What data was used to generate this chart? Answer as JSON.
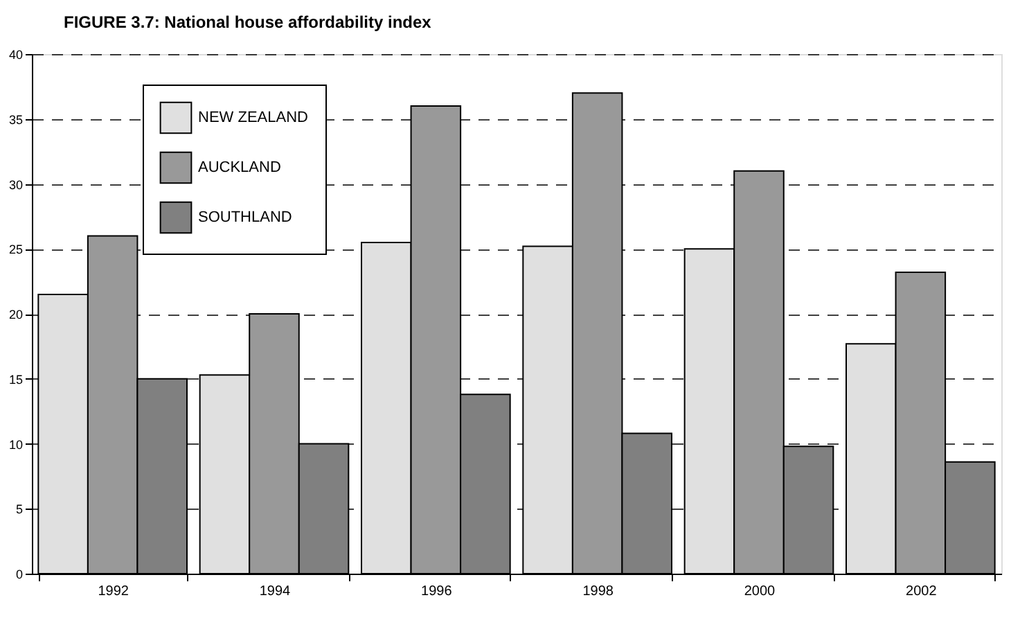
{
  "chart_data": {
    "type": "bar",
    "title": "FIGURE 3.7:      National house affordability index",
    "categories": [
      "1992",
      "1994",
      "1996",
      "1998",
      "2000",
      "2002"
    ],
    "series": [
      {
        "name": "NEW ZEALAND",
        "color": "#e0e0e0",
        "values": [
          21.5,
          15.3,
          25.5,
          25.2,
          25.0,
          17.7
        ]
      },
      {
        "name": "AUCKLAND",
        "color": "#999999",
        "values": [
          26.0,
          20.0,
          36.0,
          37.0,
          31.0,
          23.2
        ]
      },
      {
        "name": "SOUTHLAND",
        "color": "#808080",
        "values": [
          15.0,
          10.0,
          13.8,
          10.8,
          9.8,
          8.6
        ]
      }
    ],
    "ylim": [
      0,
      40
    ],
    "yticks": [
      0,
      5,
      10,
      15,
      20,
      25,
      30,
      35,
      40
    ],
    "grid": "y",
    "legend": "top left"
  }
}
